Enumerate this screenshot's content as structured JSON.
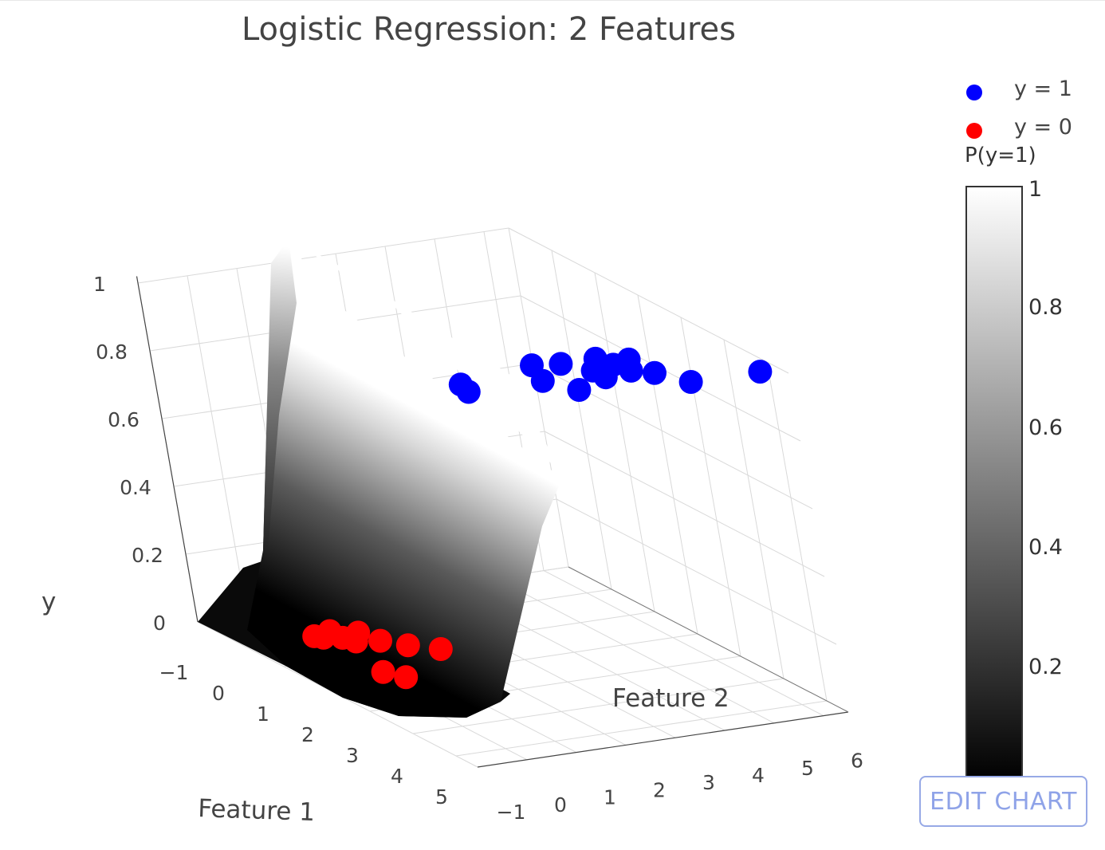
{
  "chart_data": {
    "type": "3d-surface-scatter",
    "title": "Logistic Regression: 2 Features",
    "axes": {
      "x": {
        "label": "Feature 1",
        "ticks": [
          "−1",
          "0",
          "1",
          "2",
          "3",
          "4",
          "5"
        ]
      },
      "y": {
        "label": "Feature 2",
        "ticks": [
          "−1",
          "0",
          "1",
          "2",
          "3",
          "4",
          "5",
          "6"
        ]
      },
      "z": {
        "label": "y",
        "ticks": [
          "0",
          "0.2",
          "0.4",
          "0.6",
          "0.8",
          "1"
        ]
      }
    },
    "surface": {
      "name": "P(y=1)",
      "colorscale": [
        "#000000",
        "#ffffff"
      ],
      "range": [
        0,
        1
      ]
    },
    "series": [
      {
        "name": "y = 1",
        "color": "#0000ff",
        "points": [
          [
            4.2,
            1.0,
            1
          ],
          [
            4.5,
            0.9,
            1
          ],
          [
            4.5,
            2.4,
            1
          ],
          [
            3.9,
            2.7,
            1
          ],
          [
            5.0,
            2.7,
            1
          ],
          [
            4.0,
            3.2,
            1
          ],
          [
            4.4,
            3.5,
            1
          ],
          [
            4.7,
            3.5,
            1
          ],
          [
            4.0,
            3.9,
            1
          ],
          [
            4.3,
            4.0,
            1
          ],
          [
            4.6,
            4.1,
            1
          ],
          [
            4.2,
            4.4,
            1
          ],
          [
            4.8,
            4.4,
            1
          ],
          [
            5.3,
            4.7,
            1
          ],
          [
            5.3,
            6.1,
            1
          ]
        ]
      },
      {
        "name": "y = 0",
        "color": "#ff0000",
        "points": [
          [
            0.1,
            0.4,
            0
          ],
          [
            0.2,
            0.5,
            0
          ],
          [
            0.0,
            0.8,
            0
          ],
          [
            0.3,
            0.8,
            0
          ],
          [
            0.5,
            0.9,
            0
          ],
          [
            0.2,
            1.2,
            0
          ],
          [
            0.6,
            1.3,
            0
          ],
          [
            0.9,
            1.6,
            0
          ],
          [
            1.2,
            2.0,
            0
          ],
          [
            1.7,
            0.4,
            0
          ],
          [
            2.0,
            0.6,
            0
          ]
        ]
      }
    ],
    "colorbar": {
      "title": "P(y=1)",
      "ticks": [
        "1",
        "0.8",
        "0.6",
        "0.4",
        "0.2"
      ]
    },
    "legend_position": "top-right"
  },
  "colors": {
    "y1": "#0000ff",
    "y0": "#ff0000"
  },
  "edit_button": {
    "label": "EDIT CHART"
  }
}
